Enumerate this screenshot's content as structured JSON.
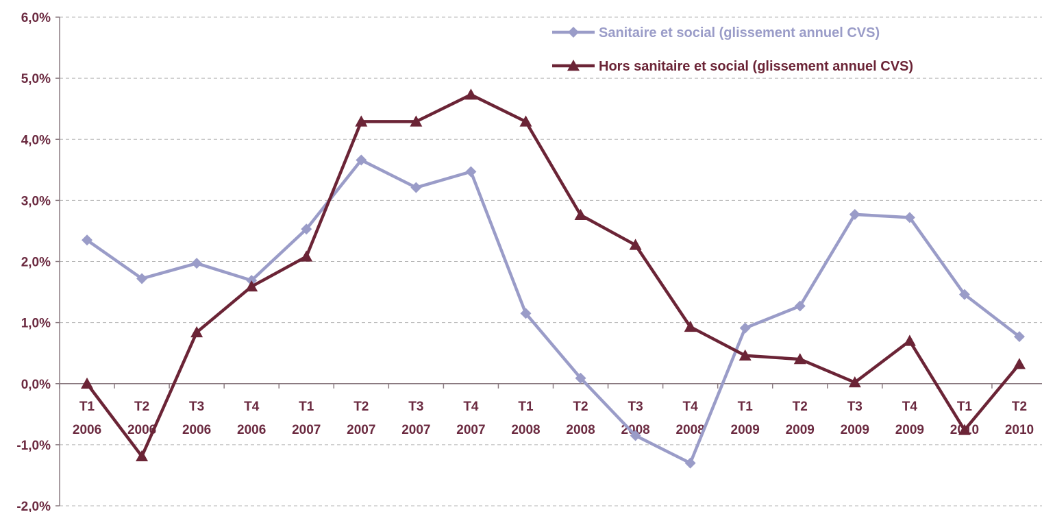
{
  "chart_data": {
    "type": "line",
    "categories": [
      [
        "T1",
        "2006"
      ],
      [
        "T2",
        "2006"
      ],
      [
        "T3",
        "2006"
      ],
      [
        "T4",
        "2006"
      ],
      [
        "T1",
        "2007"
      ],
      [
        "T2",
        "2007"
      ],
      [
        "T3",
        "2007"
      ],
      [
        "T4",
        "2007"
      ],
      [
        "T1",
        "2008"
      ],
      [
        "T2",
        "2008"
      ],
      [
        "T3",
        "2008"
      ],
      [
        "T4",
        "2008"
      ],
      [
        "T1",
        "2009"
      ],
      [
        "T2",
        "2009"
      ],
      [
        "T3",
        "2009"
      ],
      [
        "T4",
        "2009"
      ],
      [
        "T1",
        "2010"
      ],
      [
        "T2",
        "2010"
      ]
    ],
    "series": [
      {
        "name": "Sanitaire et social (glissement annuel CVS)",
        "color": "#9a9cc8",
        "marker": "diamond",
        "values": [
          2.35,
          1.72,
          1.97,
          1.69,
          2.53,
          3.66,
          3.21,
          3.47,
          1.15,
          0.09,
          -0.85,
          -1.3,
          0.91,
          1.27,
          2.77,
          2.72,
          1.46,
          0.77
        ]
      },
      {
        "name": "Hors sanitaire et social (glissement annuel CVS)",
        "color": "#6b2436",
        "marker": "triangle",
        "values": [
          0.0,
          -1.19,
          0.84,
          1.59,
          2.08,
          4.29,
          4.29,
          4.73,
          4.29,
          2.76,
          2.27,
          0.93,
          0.46,
          0.4,
          0.02,
          0.7,
          -0.76,
          0.32
        ]
      }
    ],
    "yticks": [
      "-2,0%",
      "-1,0%",
      "0,0%",
      "1,0%",
      "2,0%",
      "3,0%",
      "4,0%",
      "5,0%",
      "6,0%"
    ],
    "ylim": [
      -2,
      6
    ],
    "title": "",
    "xlabel": "",
    "ylabel": "",
    "grid": true,
    "legend_position": "top-right"
  }
}
